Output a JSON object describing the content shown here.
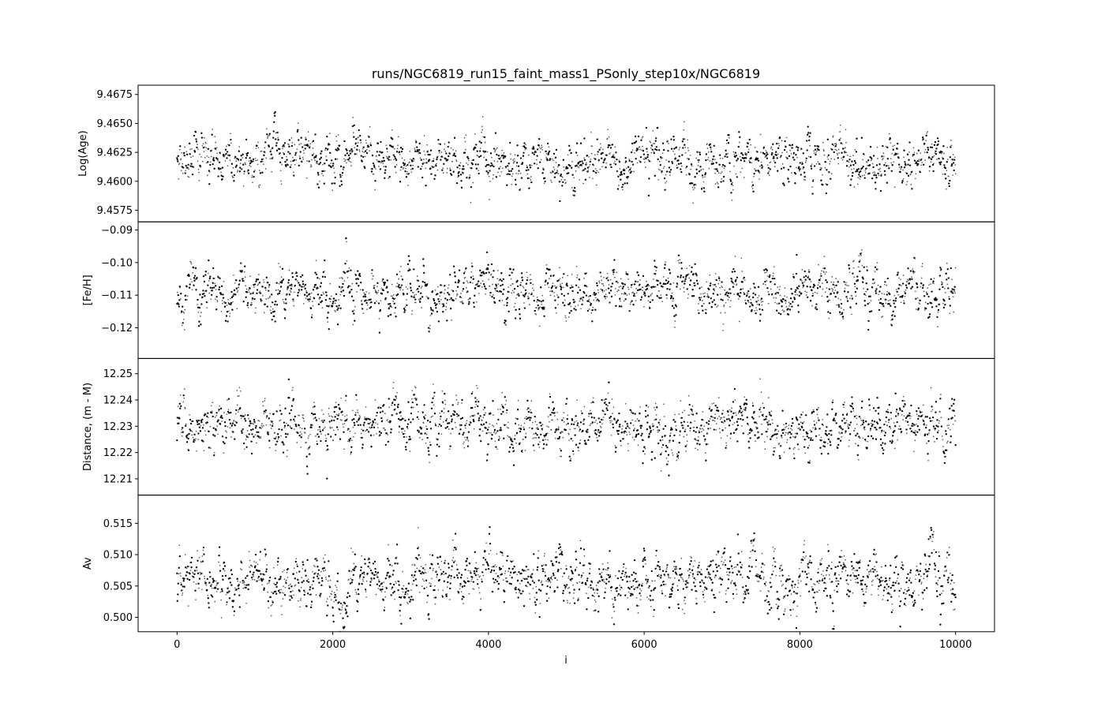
{
  "chart_data": {
    "type": "scatter",
    "title": "runs/NGC6819_run15_faint_mass1_PSonly_step10x/NGC6819",
    "xlabel": "i",
    "xlim": [
      -500,
      10500
    ],
    "xticks": [
      0,
      2000,
      4000,
      6000,
      8000,
      10000
    ],
    "marker_color": "#000000",
    "n_points_per_panel": 2000,
    "x_range": [
      0,
      10000
    ],
    "panels": [
      {
        "ylabel": "Log(Age)",
        "ylim": [
          9.4565,
          9.4683
        ],
        "yticks": [
          9.4575,
          9.46,
          9.4625,
          9.465,
          9.4675
        ],
        "ytick_labels": [
          "9.4575",
          "9.4600",
          "9.4625",
          "9.4650",
          "9.4675"
        ],
        "center": 9.4618,
        "spread": 0.0013,
        "y_min_observed": 9.4581,
        "y_max_observed": 9.4666
      },
      {
        "ylabel": "[Fe/H]",
        "ylim": [
          -0.1294,
          -0.0875
        ],
        "yticks": [
          -0.12,
          -0.11,
          -0.1,
          -0.09
        ],
        "ytick_labels": [
          "−0.12",
          "−0.11",
          "−0.10",
          "−0.09"
        ],
        "center": -0.109,
        "spread": 0.0045,
        "y_min_observed": -0.1225,
        "y_max_observed": -0.0925
      },
      {
        "ylabel": "Distance, (m - M)",
        "ylim": [
          12.2038,
          12.2558
        ],
        "yticks": [
          12.21,
          12.22,
          12.23,
          12.24,
          12.25
        ],
        "ytick_labels": [
          "12.21",
          "12.22",
          "12.23",
          "12.24",
          "12.25"
        ],
        "center": 12.2305,
        "spread": 0.0062,
        "y_min_observed": 12.209,
        "y_max_observed": 12.2495
      },
      {
        "ylabel": "Av",
        "ylim": [
          0.4977,
          0.5195
        ],
        "yticks": [
          0.5,
          0.505,
          0.51,
          0.515
        ],
        "ytick_labels": [
          "0.500",
          "0.505",
          "0.510",
          "0.515"
        ],
        "center": 0.5058,
        "spread": 0.0027,
        "y_min_observed": 0.4977,
        "y_max_observed": 0.5145
      }
    ]
  }
}
